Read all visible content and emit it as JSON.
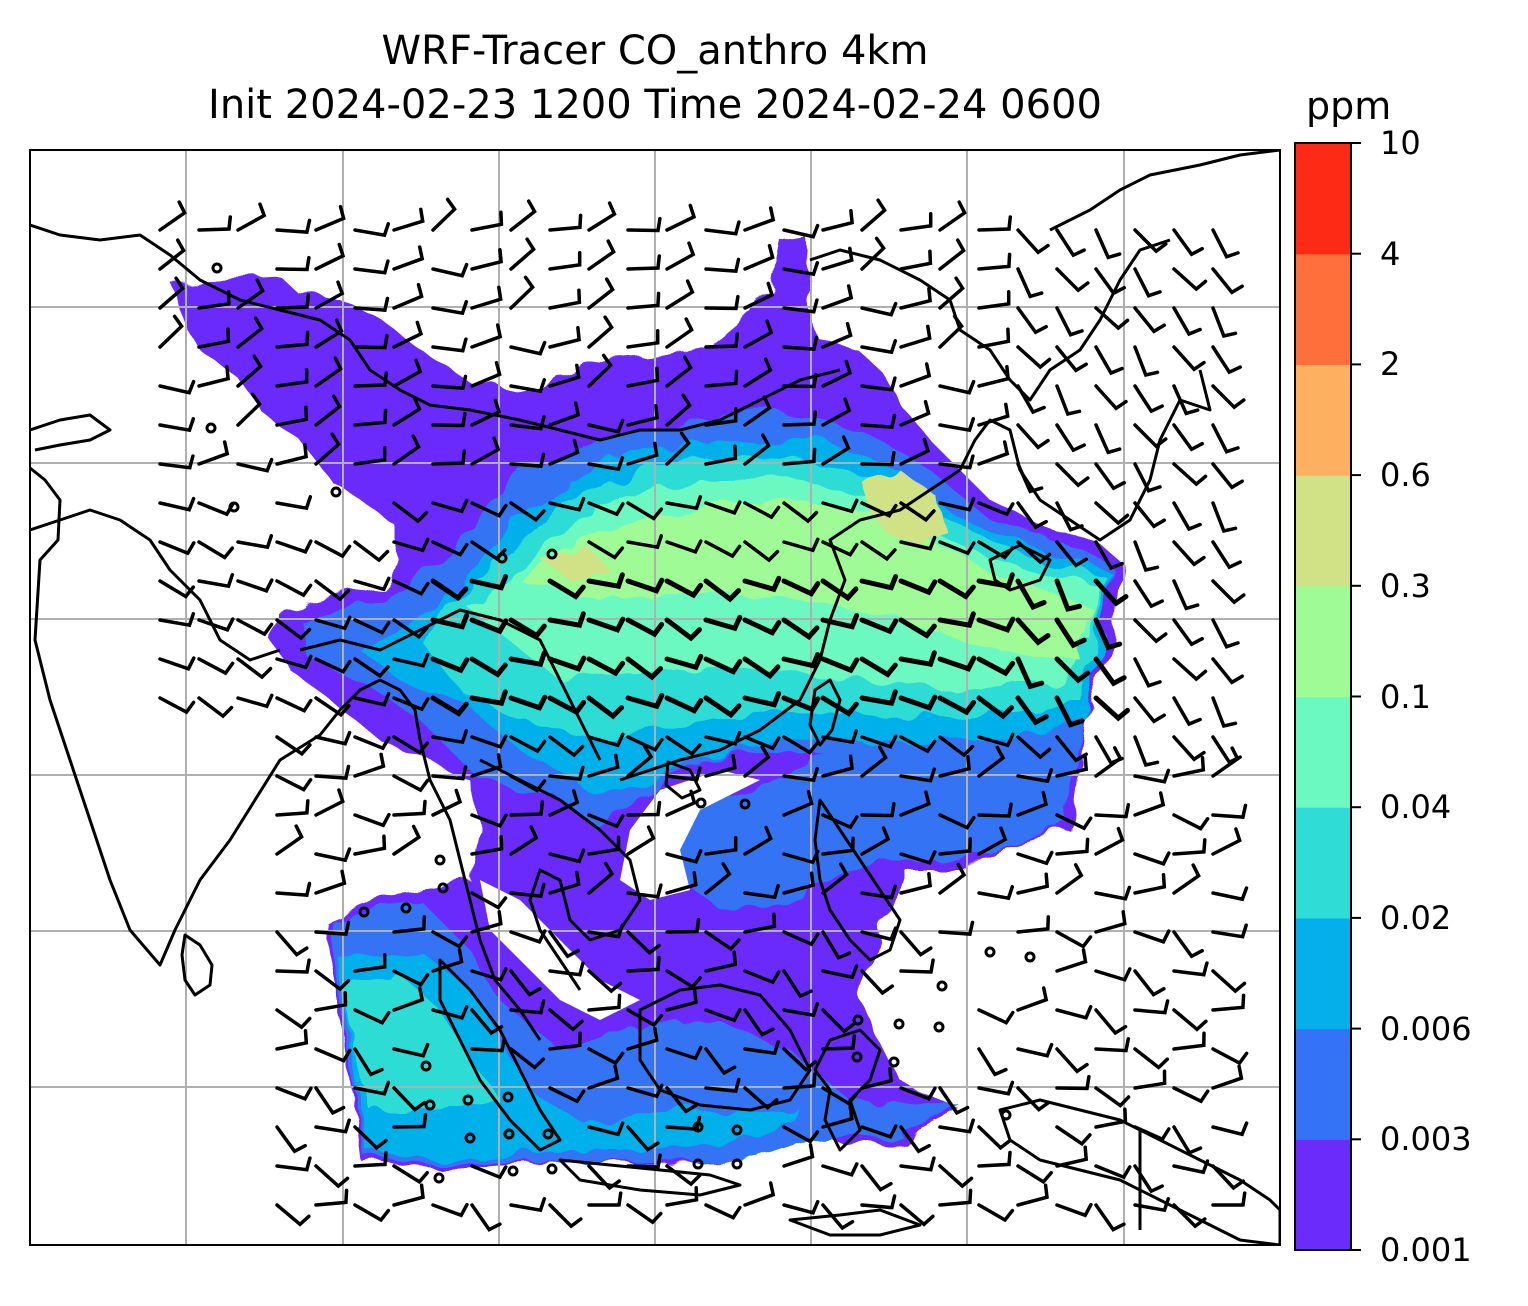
{
  "title": {
    "line1": "WRF-Tracer CO_anthro 4km",
    "line2": "Init 2024-02-23 1200 Time 2024-02-24 0600"
  },
  "colorbar": {
    "unit": "ppm",
    "levels": [
      "0.001",
      "0.003",
      "0.006",
      "0.02",
      "0.04",
      "0.1",
      "0.3",
      "0.6",
      "2",
      "4",
      "10"
    ],
    "colors": [
      "#6a2bfb",
      "#3473f5",
      "#05b0ea",
      "#2fdcd6",
      "#6cf9c1",
      "#9efb96",
      "#d1e186",
      "#fdb05f",
      "#ff6f3b",
      "#ff2a16"
    ]
  },
  "map": {
    "gridlines": "on",
    "coastline_color": "#000000",
    "gridline_color": "#b0b0b0",
    "wind_barbs": "on"
  }
}
